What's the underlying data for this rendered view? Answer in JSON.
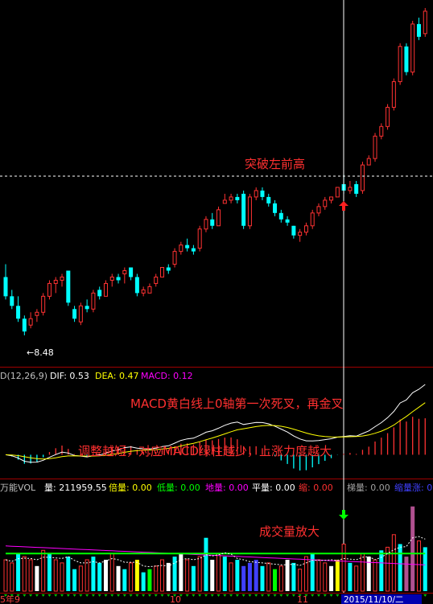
{
  "price_panel": {
    "low_marker": "←8.48",
    "annotation": "突破左前高"
  },
  "macd_panel": {
    "indicator": "D(12,26,9)",
    "dif_label": "DIF: 0.53",
    "dea_label": "DEA: 0.47",
    "macd_label": "MACD: 0.12",
    "annotation_1": "MACD黄白线上0轴第一次死叉，再金叉",
    "annotation_2": "调整越短，对应MACD绿柱越少，上涨力度越大"
  },
  "volume_panel": {
    "name": "万能VOL",
    "items": [
      {
        "text": "量: 211959.55",
        "color": "#ffffff"
      },
      {
        "text": "倍量: 0.00",
        "color": "#ffff00"
      },
      {
        "text": "低量: 0.00",
        "color": "#00ff00"
      },
      {
        "text": "地量: 0.00",
        "color": "#ff00ff"
      },
      {
        "text": "平量: 0.00",
        "color": "#ffffff"
      },
      {
        "text": "缩: 0.00",
        "color": "#ff3030"
      },
      {
        "text": "梯量: 0.00",
        "color": "#a0a0a0"
      },
      {
        "text": "缩量涨: 0",
        "color": "#4040ff"
      }
    ],
    "annotation": "成交量放大"
  },
  "axis": {
    "date_labels": [
      "5年9",
      "10",
      "11"
    ],
    "date_highlight": "2015/11/10/二"
  },
  "chart_data": {
    "type": "candlestick",
    "price_low": 8.48,
    "candles": [
      [
        10.3,
        10.7,
        9.6,
        9.7
      ],
      [
        9.7,
        9.9,
        9.3,
        9.4
      ],
      [
        9.4,
        9.7,
        8.9,
        9.0
      ],
      [
        9.0,
        9.1,
        8.48,
        8.6
      ],
      [
        8.8,
        9.2,
        8.7,
        9.0
      ],
      [
        9.1,
        9.3,
        8.9,
        9.2
      ],
      [
        9.2,
        9.8,
        9.1,
        9.7
      ],
      [
        9.7,
        10.2,
        9.6,
        10.1
      ],
      [
        10.1,
        10.3,
        9.8,
        10.2
      ],
      [
        10.2,
        10.4,
        10.0,
        10.3
      ],
      [
        10.5,
        10.5,
        9.4,
        9.5
      ],
      [
        9.3,
        9.4,
        8.9,
        9.0
      ],
      [
        8.9,
        9.5,
        8.8,
        9.4
      ],
      [
        9.4,
        9.6,
        9.2,
        9.3
      ],
      [
        9.3,
        9.9,
        9.2,
        9.8
      ],
      [
        9.9,
        10.0,
        9.6,
        9.7
      ],
      [
        9.7,
        10.2,
        9.7,
        10.1
      ],
      [
        10.2,
        10.4,
        10.0,
        10.3
      ],
      [
        10.3,
        10.4,
        10.1,
        10.2
      ],
      [
        10.4,
        10.6,
        10.1,
        10.5
      ],
      [
        10.6,
        10.6,
        10.2,
        10.3
      ],
      [
        10.3,
        10.4,
        9.7,
        9.8
      ],
      [
        9.8,
        10.0,
        9.7,
        9.9
      ],
      [
        9.8,
        10.1,
        9.8,
        10.0
      ],
      [
        10.1,
        10.4,
        10.0,
        10.3
      ],
      [
        10.3,
        10.6,
        10.3,
        10.6
      ],
      [
        10.6,
        10.7,
        10.4,
        10.5
      ],
      [
        10.7,
        11.2,
        10.6,
        11.1
      ],
      [
        11.1,
        11.4,
        11.0,
        11.3
      ],
      [
        11.3,
        11.5,
        11.1,
        11.2
      ],
      [
        11.2,
        11.3,
        11.0,
        11.1
      ],
      [
        11.2,
        11.9,
        11.1,
        11.8
      ],
      [
        11.8,
        12.2,
        11.7,
        12.1
      ],
      [
        12.1,
        12.3,
        11.8,
        11.9
      ],
      [
        11.9,
        12.5,
        11.9,
        12.4
      ],
      [
        12.6,
        12.9,
        12.6,
        12.7
      ],
      [
        12.7,
        12.9,
        12.6,
        12.8
      ],
      [
        12.8,
        12.9,
        12.6,
        12.7
      ],
      [
        12.9,
        13.0,
        11.8,
        11.9
      ],
      [
        11.9,
        12.9,
        11.8,
        12.8
      ],
      [
        12.8,
        13.1,
        12.7,
        13.0
      ],
      [
        13.0,
        13.1,
        12.7,
        12.8
      ],
      [
        12.8,
        12.9,
        12.5,
        12.6
      ],
      [
        12.6,
        12.7,
        12.2,
        12.3
      ],
      [
        12.3,
        12.4,
        12.0,
        12.1
      ],
      [
        12.1,
        12.2,
        11.9,
        12.0
      ],
      [
        11.9,
        11.9,
        11.5,
        11.6
      ],
      [
        11.6,
        11.8,
        11.4,
        11.7
      ],
      [
        11.7,
        12.0,
        11.6,
        11.9
      ],
      [
        11.9,
        12.4,
        11.8,
        12.3
      ],
      [
        12.3,
        12.6,
        12.2,
        12.5
      ],
      [
        12.5,
        12.8,
        12.4,
        12.7
      ],
      [
        12.7,
        12.8,
        12.6,
        12.8
      ],
      [
        12.8,
        13.1,
        12.8,
        13.1
      ],
      [
        13.2,
        13.5,
        12.9,
        13.0
      ],
      [
        13.0,
        13.3,
        12.9,
        13.1
      ],
      [
        13.2,
        13.3,
        12.8,
        12.9
      ],
      [
        13.0,
        13.9,
        12.9,
        13.8
      ],
      [
        13.8,
        14.1,
        13.8,
        14.0
      ],
      [
        14.0,
        14.8,
        13.9,
        14.7
      ],
      [
        14.7,
        15.1,
        14.6,
        15.0
      ],
      [
        15.0,
        15.7,
        14.9,
        15.6
      ],
      [
        15.6,
        16.5,
        15.5,
        16.4
      ],
      [
        16.4,
        17.6,
        16.3,
        17.5
      ],
      [
        17.5,
        17.6,
        16.6,
        16.7
      ],
      [
        16.7,
        18.3,
        16.6,
        18.2
      ],
      [
        18.2,
        18.4,
        17.7,
        17.8
      ],
      [
        17.9,
        18.7,
        17.8,
        18.6
      ]
    ],
    "volume": [
      0.5,
      0.45,
      0.6,
      0.55,
      0.5,
      0.4,
      0.65,
      0.6,
      0.5,
      0.45,
      0.55,
      0.35,
      0.4,
      0.5,
      0.55,
      0.45,
      0.5,
      0.6,
      0.4,
      0.35,
      0.45,
      0.5,
      0.3,
      0.35,
      0.4,
      0.5,
      0.45,
      0.55,
      0.6,
      0.5,
      0.4,
      0.55,
      0.85,
      0.5,
      0.6,
      0.55,
      0.45,
      0.5,
      0.4,
      0.45,
      0.5,
      0.4,
      0.45,
      0.35,
      0.4,
      0.5,
      0.45,
      0.35,
      0.55,
      0.6,
      0.5,
      0.45,
      0.4,
      0.5,
      0.75,
      0.45,
      0.4,
      0.6,
      0.55,
      0.5,
      0.65,
      0.7,
      0.9,
      0.75,
      0.55,
      1.35,
      0.8,
      0.7
    ],
    "volume_colors": [
      "r",
      "r",
      "c",
      "r",
      "r",
      "w",
      "r",
      "c",
      "r",
      "r",
      "c",
      "c",
      "r",
      "r",
      "c",
      "c",
      "w",
      "r",
      "w",
      "c",
      "r",
      "y",
      "c",
      "g",
      "r",
      "r",
      "w",
      "c",
      "w",
      "r",
      "c",
      "r",
      "c",
      "w",
      "r",
      "c",
      "r",
      "c",
      "b",
      "b",
      "b",
      "c",
      "r",
      "g",
      "r",
      "w",
      "c",
      "r",
      "r",
      "c",
      "r",
      "r",
      "w",
      "y",
      "r",
      "c",
      "r",
      "r",
      "w",
      "r",
      "c",
      "r",
      "r",
      "c",
      "p",
      "p",
      "r",
      "c"
    ]
  }
}
